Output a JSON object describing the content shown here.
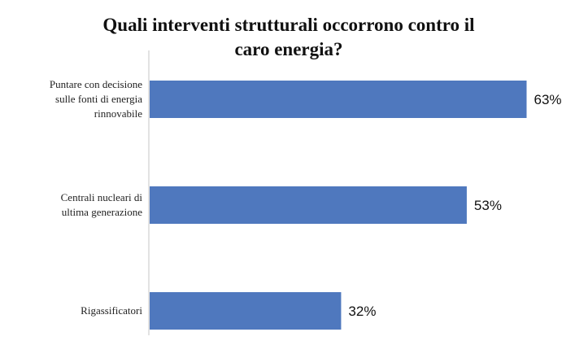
{
  "chart_data": {
    "type": "bar",
    "orientation": "horizontal",
    "title_lines": [
      "Quali interventi strutturali occorrono contro il",
      "caro energia?"
    ],
    "categories": [
      [
        "Puntare con decisione",
        "sulle fonti di energia",
        "rinnovabile"
      ],
      [
        "Centrali nucleari di",
        "ultima generazione"
      ],
      [
        "Rigassificatori"
      ]
    ],
    "values": [
      63,
      53,
      32
    ],
    "value_labels": [
      "63%",
      "53%",
      "32%"
    ],
    "xlim": [
      0,
      70
    ],
    "bar_color": "#4f78be",
    "axis_color": "#d9d9d9",
    "grid": false,
    "legend": "none"
  }
}
